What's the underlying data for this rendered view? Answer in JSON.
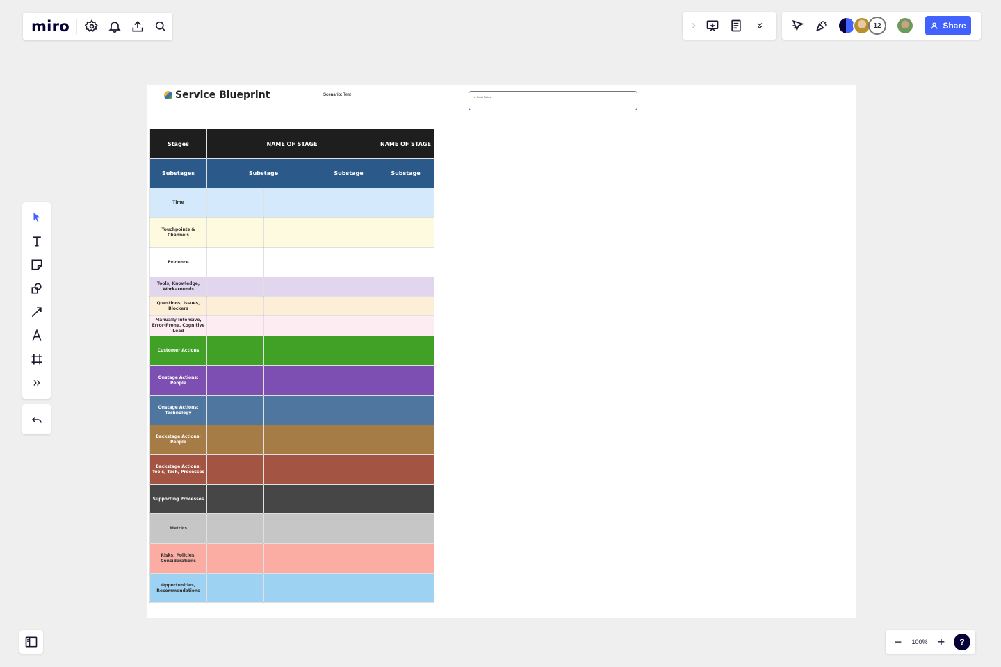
{
  "app": {
    "logo_text": "miro",
    "share_label": "Share",
    "collaborator_count": "12",
    "zoom_level": "100%",
    "help_label": "?"
  },
  "board": {
    "title": "Service Blueprint",
    "scenario_label": "Scenario:",
    "scenario_value": "Test",
    "note_text": "Draft Notes"
  },
  "blueprint": {
    "stages_label": "Stages",
    "stage_1": "NAME OF STAGE",
    "stage_2": "NAME OF STAGE",
    "substages_label": "Substages",
    "substages": [
      "Substage",
      "Substage",
      "Substage"
    ],
    "rows": [
      {
        "label": "Time",
        "color": "#d4e9fb",
        "text_color": "#333333"
      },
      {
        "label": "Touchpoints & Channels",
        "color": "#fdfadf",
        "text_color": "#333333"
      },
      {
        "label": "Evidence",
        "color": "#ffffff",
        "text_color": "#333333"
      },
      {
        "label": "Tools, Knowledge, Workarounds",
        "color": "#e2d5ee",
        "text_color": "#333333"
      },
      {
        "label": "Questions, Issues, Blockers",
        "color": "#fdeed8",
        "text_color": "#333333"
      },
      {
        "label": "Manually Intensive, Error-Prone, Cognitive Load",
        "color": "#fdecf2",
        "text_color": "#333333"
      },
      {
        "label": "Customer Actions",
        "color": "#40a126",
        "text_color": "#ffffff"
      },
      {
        "label": "Onstage Actions: People",
        "color": "#7d4fb2",
        "text_color": "#ffffff"
      },
      {
        "label": "Onstage Actions: Technology",
        "color": "#4e769e",
        "text_color": "#ffffff"
      },
      {
        "label": "Backstage Actions: People",
        "color": "#a67c46",
        "text_color": "#ffffff"
      },
      {
        "label": "Backstage Actions: Tools, Tech, Processes",
        "color": "#a35442",
        "text_color": "#ffffff"
      },
      {
        "label": "Supporting Processes",
        "color": "#464646",
        "text_color": "#ffffff"
      },
      {
        "label": "Metrics",
        "color": "#c6c6c6",
        "text_color": "#333333"
      },
      {
        "label": "Risks, Policies, Considerations",
        "color": "#fbada3",
        "text_color": "#333333"
      },
      {
        "label": "Opportunities, Recommendations",
        "color": "#9dd2f3",
        "text_color": "#333333"
      }
    ]
  },
  "icons": {
    "top_left": [
      "settings-icon",
      "bell-icon",
      "upload-icon",
      "search-icon"
    ],
    "top_right": [
      "chevron-right-icon",
      "present-icon",
      "notes-icon",
      "chevrons-down-icon",
      "cursor-arrow-icon",
      "celebrate-icon"
    ],
    "left_toolbar": [
      "select-icon",
      "text-icon",
      "sticky-note-icon",
      "shapes-icon",
      "arrow-line-icon",
      "pen-icon",
      "frame-icon",
      "more-tools-icon"
    ],
    "bottom": [
      "undo-icon",
      "sidebar-toggle-icon",
      "zoom-out-icon",
      "zoom-in-icon",
      "help-icon"
    ]
  },
  "colors": {
    "accent": "#4262ff",
    "canvas": "#efefef",
    "stage_header": "#1e1e1e",
    "substage_header": "#2b5a8a"
  }
}
